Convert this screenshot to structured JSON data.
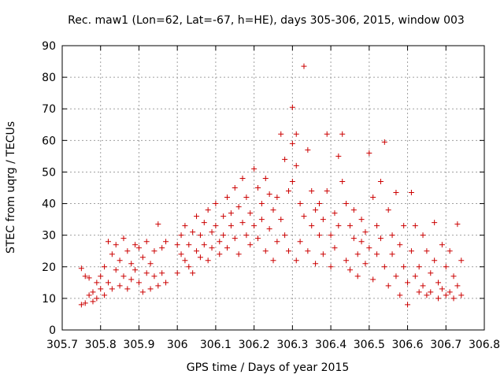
{
  "chart_data": {
    "type": "scatter",
    "title": "Rec. maw1 (Lon=62, Lat=-67, h=HE), days 305-306, 2015, window 003",
    "xlabel": "GPS time / Days of year 2015",
    "ylabel": "STEC from uqrg / TECUs",
    "xlim": [
      305.7,
      306.8
    ],
    "ylim": [
      0,
      90
    ],
    "grid": true,
    "marker": "+",
    "color": "#cc0000",
    "xticks": [
      305.7,
      305.8,
      305.9,
      306.0,
      306.1,
      306.2,
      306.3,
      306.4,
      306.5,
      306.6,
      306.7,
      306.8
    ],
    "xtick_labels": [
      "305.7",
      "305.8",
      "305.9",
      "306",
      "306.1",
      "306.2",
      "306.3",
      "306.4",
      "306.5",
      "306.6",
      "306.7",
      "306.8"
    ],
    "yticks": [
      0,
      10,
      20,
      30,
      40,
      50,
      60,
      70,
      80,
      90
    ],
    "ytick_labels": [
      "0",
      "10",
      "20",
      "30",
      "40",
      "50",
      "60",
      "70",
      "80",
      "90"
    ],
    "points": [
      [
        305.75,
        8
      ],
      [
        305.75,
        19.5
      ],
      [
        305.76,
        17
      ],
      [
        305.76,
        8.5
      ],
      [
        305.77,
        11
      ],
      [
        305.77,
        16.5
      ],
      [
        305.78,
        9
      ],
      [
        305.78,
        12
      ],
      [
        305.79,
        15
      ],
      [
        305.79,
        10
      ],
      [
        305.8,
        13
      ],
      [
        305.8,
        17
      ],
      [
        305.81,
        20
      ],
      [
        305.81,
        11
      ],
      [
        305.82,
        28
      ],
      [
        305.82,
        15
      ],
      [
        305.83,
        24
      ],
      [
        305.83,
        13
      ],
      [
        305.84,
        19
      ],
      [
        305.84,
        27
      ],
      [
        305.85,
        22
      ],
      [
        305.85,
        14
      ],
      [
        305.86,
        29
      ],
      [
        305.86,
        17
      ],
      [
        305.87,
        25
      ],
      [
        305.87,
        13
      ],
      [
        305.88,
        21
      ],
      [
        305.88,
        16
      ],
      [
        305.89,
        27
      ],
      [
        305.89,
        19
      ],
      [
        305.9,
        15
      ],
      [
        305.9,
        26
      ],
      [
        305.91,
        23
      ],
      [
        305.91,
        12
      ],
      [
        305.92,
        28
      ],
      [
        305.92,
        18
      ],
      [
        305.93,
        21
      ],
      [
        305.93,
        13
      ],
      [
        305.94,
        25
      ],
      [
        305.94,
        17
      ],
      [
        305.95,
        33.5
      ],
      [
        305.95,
        14
      ],
      [
        305.96,
        26
      ],
      [
        305.96,
        18
      ],
      [
        305.97,
        28
      ],
      [
        305.97,
        15
      ],
      [
        306.0,
        18
      ],
      [
        306.0,
        27
      ],
      [
        306.01,
        24
      ],
      [
        306.01,
        30
      ],
      [
        306.02,
        22
      ],
      [
        306.02,
        33
      ],
      [
        306.03,
        20
      ],
      [
        306.03,
        27
      ],
      [
        306.04,
        31
      ],
      [
        306.04,
        18
      ],
      [
        306.05,
        36
      ],
      [
        306.05,
        25
      ],
      [
        306.06,
        30
      ],
      [
        306.06,
        23
      ],
      [
        306.07,
        34
      ],
      [
        306.07,
        27
      ],
      [
        306.08,
        22
      ],
      [
        306.08,
        38
      ],
      [
        306.09,
        31
      ],
      [
        306.09,
        26
      ],
      [
        306.1,
        40
      ],
      [
        306.1,
        33
      ],
      [
        306.11,
        28
      ],
      [
        306.11,
        24
      ],
      [
        306.12,
        36
      ],
      [
        306.12,
        30
      ],
      [
        306.13,
        42
      ],
      [
        306.13,
        26
      ],
      [
        306.14,
        37
      ],
      [
        306.14,
        33
      ],
      [
        306.15,
        45
      ],
      [
        306.15,
        29
      ],
      [
        306.16,
        39
      ],
      [
        306.16,
        24
      ],
      [
        306.17,
        34
      ],
      [
        306.17,
        48
      ],
      [
        306.18,
        30
      ],
      [
        306.18,
        42
      ],
      [
        306.19,
        27
      ],
      [
        306.19,
        37
      ],
      [
        306.2,
        51
      ],
      [
        306.2,
        33
      ],
      [
        306.21,
        45
      ],
      [
        306.21,
        29
      ],
      [
        306.22,
        40
      ],
      [
        306.22,
        35
      ],
      [
        306.23,
        48
      ],
      [
        306.23,
        25
      ],
      [
        306.24,
        43
      ],
      [
        306.24,
        32
      ],
      [
        306.25,
        38
      ],
      [
        306.25,
        22
      ],
      [
        306.26,
        42
      ],
      [
        306.26,
        28
      ],
      [
        306.27,
        62
      ],
      [
        306.27,
        35
      ],
      [
        306.28,
        54
      ],
      [
        306.28,
        30
      ],
      [
        306.29,
        44
      ],
      [
        306.29,
        25
      ],
      [
        306.3,
        70.5
      ],
      [
        306.3,
        59
      ],
      [
        306.3,
        47
      ],
      [
        306.31,
        62
      ],
      [
        306.31,
        52
      ],
      [
        306.31,
        22
      ],
      [
        306.32,
        40
      ],
      [
        306.32,
        28
      ],
      [
        306.33,
        83.5
      ],
      [
        306.33,
        36
      ],
      [
        306.34,
        57
      ],
      [
        306.34,
        25
      ],
      [
        306.35,
        44
      ],
      [
        306.35,
        33
      ],
      [
        306.36,
        38
      ],
      [
        306.36,
        21
      ],
      [
        306.37,
        30
      ],
      [
        306.37,
        40
      ],
      [
        306.38,
        35
      ],
      [
        306.38,
        24
      ],
      [
        306.39,
        62
      ],
      [
        306.39,
        44
      ],
      [
        306.4,
        30
      ],
      [
        306.4,
        20
      ],
      [
        306.41,
        37
      ],
      [
        306.41,
        26
      ],
      [
        306.42,
        55
      ],
      [
        306.42,
        33
      ],
      [
        306.43,
        62
      ],
      [
        306.43,
        47
      ],
      [
        306.44,
        40
      ],
      [
        306.44,
        22
      ],
      [
        306.45,
        33
      ],
      [
        306.45,
        19
      ],
      [
        306.46,
        29
      ],
      [
        306.46,
        38
      ],
      [
        306.47,
        24
      ],
      [
        306.47,
        17
      ],
      [
        306.48,
        35
      ],
      [
        306.48,
        28
      ],
      [
        306.49,
        21
      ],
      [
        306.49,
        31
      ],
      [
        306.5,
        56
      ],
      [
        306.5,
        26
      ],
      [
        306.51,
        42
      ],
      [
        306.51,
        16
      ],
      [
        306.52,
        33
      ],
      [
        306.52,
        24
      ],
      [
        306.53,
        47
      ],
      [
        306.53,
        29
      ],
      [
        306.54,
        59.5
      ],
      [
        306.54,
        20
      ],
      [
        306.55,
        38
      ],
      [
        306.55,
        14
      ],
      [
        306.56,
        30
      ],
      [
        306.56,
        24
      ],
      [
        306.57,
        43.5
      ],
      [
        306.57,
        17
      ],
      [
        306.58,
        27
      ],
      [
        306.58,
        11
      ],
      [
        306.59,
        33
      ],
      [
        306.59,
        20
      ],
      [
        306.6,
        15
      ],
      [
        306.6,
        8
      ],
      [
        306.61,
        43.5
      ],
      [
        306.61,
        25
      ],
      [
        306.62,
        33
      ],
      [
        306.62,
        17
      ],
      [
        306.63,
        20
      ],
      [
        306.63,
        12
      ],
      [
        306.64,
        30
      ],
      [
        306.64,
        14
      ],
      [
        306.65,
        25
      ],
      [
        306.65,
        11
      ],
      [
        306.66,
        18
      ],
      [
        306.66,
        12
      ],
      [
        306.67,
        34
      ],
      [
        306.67,
        22
      ],
      [
        306.68,
        15
      ],
      [
        306.68,
        10
      ],
      [
        306.69,
        27
      ],
      [
        306.69,
        13
      ],
      [
        306.7,
        20
      ],
      [
        306.7,
        11
      ],
      [
        306.71,
        25
      ],
      [
        306.71,
        12
      ],
      [
        306.72,
        17
      ],
      [
        306.72,
        10
      ],
      [
        306.73,
        33.5
      ],
      [
        306.73,
        14
      ],
      [
        306.74,
        22
      ],
      [
        306.74,
        11
      ]
    ]
  }
}
